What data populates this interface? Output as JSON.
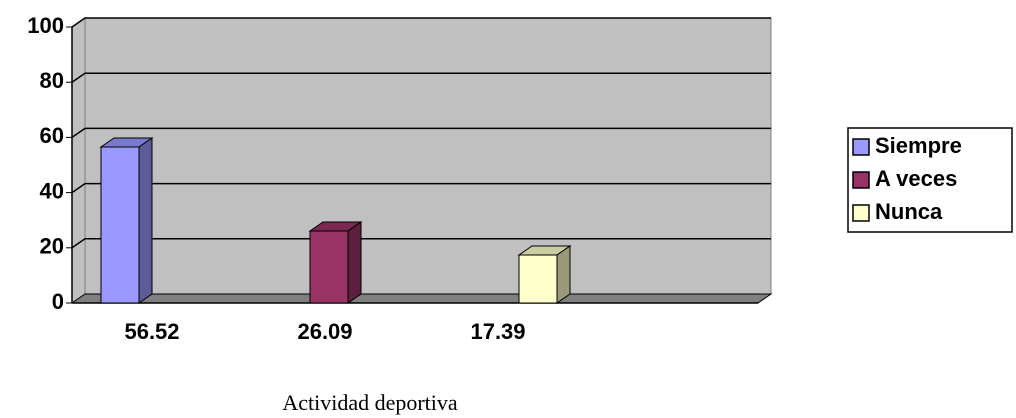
{
  "chart_data": {
    "type": "bar3d",
    "x_label": "Actividad deportiva",
    "categories": [
      "56.52",
      "26.09",
      "17.39"
    ],
    "series": [
      {
        "name": "Siempre",
        "color": "#9999ff",
        "values": [
          56.52,
          null,
          null
        ]
      },
      {
        "name": "A veces",
        "color": "#993366",
        "values": [
          null,
          26.09,
          null
        ]
      },
      {
        "name": "Nunca",
        "color": "#ffffcc",
        "values": [
          null,
          null,
          17.39
        ]
      }
    ],
    "ylim": [
      0,
      100
    ],
    "yticks": [
      0,
      20,
      40,
      60,
      80,
      100
    ],
    "grid": true,
    "legend": "right"
  }
}
